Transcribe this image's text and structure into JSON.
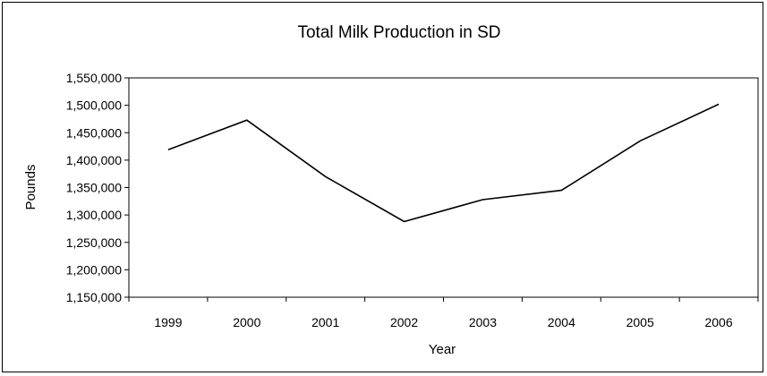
{
  "chart_data": {
    "type": "line",
    "title": "Total Milk Production in SD",
    "xlabel": "Year",
    "ylabel": "Pounds",
    "categories": [
      "1999",
      "2000",
      "2001",
      "2002",
      "2003",
      "2004",
      "2005",
      "2006"
    ],
    "series": [
      {
        "values": [
          1419000,
          1473000,
          1370000,
          1288000,
          1328000,
          1345000,
          1435000,
          1502000
        ]
      }
    ],
    "ylim": [
      1150000,
      1550000
    ],
    "yticks": [
      "1,150,000",
      "1,200,000",
      "1,250,000",
      "1,300,000",
      "1,350,000",
      "1,400,000",
      "1,450,000",
      "1,500,000",
      "1,550,000"
    ],
    "grid": false,
    "legend": "none",
    "line_color": "#000000"
  }
}
